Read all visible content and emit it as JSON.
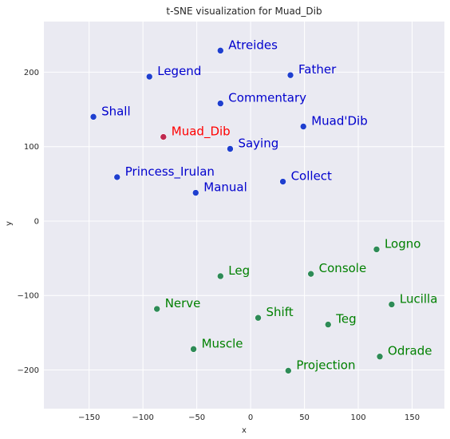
{
  "chart_data": {
    "type": "scatter",
    "title": "t-SNE visualization for Muad_Dib",
    "xlabel": "x",
    "ylabel": "y",
    "xlim": [
      -192,
      180
    ],
    "ylim": [
      -252,
      268
    ],
    "xticks": [
      -150,
      -100,
      -50,
      0,
      50,
      100,
      150
    ],
    "yticks": [
      -200,
      -100,
      0,
      100,
      200
    ],
    "grid": true,
    "colors": {
      "background": "#eaeaf2",
      "grid": "#ffffff",
      "query": "#c0294f",
      "blue": "#0000cd",
      "green": "#008000",
      "marker_blue": "#1f3fcf",
      "marker_green": "#2e8b57"
    },
    "query_point": {
      "label": "Muad_Dib",
      "x": -81,
      "y": 113
    },
    "series": [
      {
        "group": "blue",
        "points": [
          {
            "label": "Atreides",
            "x": -28,
            "y": 229
          },
          {
            "label": "Legend",
            "x": -94,
            "y": 194
          },
          {
            "label": "Father",
            "x": 37,
            "y": 196
          },
          {
            "label": "Commentary",
            "x": -28,
            "y": 158
          },
          {
            "label": "Shall",
            "x": -146,
            "y": 140
          },
          {
            "label": "Muad'Dib",
            "x": 49,
            "y": 127
          },
          {
            "label": "Saying",
            "x": -19,
            "y": 97
          },
          {
            "label": "Princess_Irulan",
            "x": -124,
            "y": 59
          },
          {
            "label": "Collect",
            "x": 30,
            "y": 53
          },
          {
            "label": "Manual",
            "x": -51,
            "y": 38
          }
        ]
      },
      {
        "group": "green",
        "points": [
          {
            "label": "Logno",
            "x": 117,
            "y": -38
          },
          {
            "label": "Console",
            "x": 56,
            "y": -71
          },
          {
            "label": "Leg",
            "x": -28,
            "y": -74
          },
          {
            "label": "Lucilla",
            "x": 131,
            "y": -112
          },
          {
            "label": "Nerve",
            "x": -87,
            "y": -118
          },
          {
            "label": "Shift",
            "x": 7,
            "y": -130
          },
          {
            "label": "Teg",
            "x": 72,
            "y": -139
          },
          {
            "label": "Muscle",
            "x": -53,
            "y": -172
          },
          {
            "label": "Odrade",
            "x": 120,
            "y": -182
          },
          {
            "label": "Projection",
            "x": 35,
            "y": -201
          }
        ]
      }
    ]
  }
}
